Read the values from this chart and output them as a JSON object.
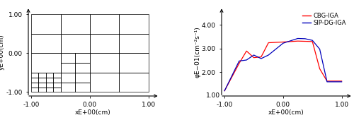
{
  "left_xlim": [
    -1.05,
    1.15
  ],
  "left_ylim": [
    -1.1,
    1.15
  ],
  "left_xlabel": "xE+00(cm)",
  "left_ylabel": "yE+00(cm)",
  "left_xticks": [
    -1.0,
    0.0,
    1.0
  ],
  "left_yticks": [
    -1.0,
    0.0,
    1.0
  ],
  "right_xlim": [
    -1.05,
    1.15
  ],
  "right_ylim": [
    1.0,
    4.7
  ],
  "right_xlabel": "xE+00(cm)",
  "right_ylabel": "φE−01(cm⁻²s⁻¹)",
  "right_yticks": [
    2.0,
    3.0,
    4.0
  ],
  "right_xticks": [
    -1.0,
    0.0,
    1.0
  ],
  "cbg_color": "#ff0000",
  "dg_color": "#0000bb",
  "cbg_label": "CBG-IGA",
  "dg_label": "SIP-DG-IGA",
  "cbg_x": [
    -1.0,
    -0.75,
    -0.625,
    -0.5,
    -0.375,
    -0.25,
    0.0,
    0.25,
    0.5,
    0.625,
    0.75,
    1.0
  ],
  "cbg_y": [
    1.22,
    2.38,
    2.9,
    2.62,
    2.65,
    3.25,
    3.28,
    3.32,
    3.3,
    2.15,
    1.63,
    1.63
  ],
  "dg_x": [
    -1.0,
    -0.75,
    -0.625,
    -0.5,
    -0.375,
    -0.25,
    0.0,
    0.25,
    0.375,
    0.5,
    0.625,
    0.75,
    1.0
  ],
  "dg_y": [
    1.22,
    2.48,
    2.52,
    2.73,
    2.58,
    2.73,
    3.23,
    3.43,
    3.42,
    3.35,
    2.98,
    1.6,
    1.6
  ],
  "tick_fontsize": 6.5,
  "label_fontsize": 6.5,
  "legend_fontsize": 6.0,
  "small_cell": 0.125,
  "medium_cell": 0.25,
  "large_cell": 0.5,
  "grid_rects": [
    [
      [
        -1.0,
        -1.0
      ],
      0.125,
      0.125
    ],
    [
      [
        -0.875,
        -1.0
      ],
      0.125,
      0.125
    ],
    [
      [
        -0.75,
        -1.0
      ],
      0.125,
      0.125
    ],
    [
      [
        -0.625,
        -1.0
      ],
      0.125,
      0.125
    ],
    [
      [
        -1.0,
        -0.875
      ],
      0.125,
      0.125
    ],
    [
      [
        -0.875,
        -0.875
      ],
      0.125,
      0.125
    ],
    [
      [
        -0.75,
        -0.875
      ],
      0.125,
      0.125
    ],
    [
      [
        -0.625,
        -0.875
      ],
      0.125,
      0.125
    ],
    [
      [
        -1.0,
        -0.75
      ],
      0.125,
      0.125
    ],
    [
      [
        -0.875,
        -0.75
      ],
      0.125,
      0.125
    ],
    [
      [
        -0.75,
        -0.75
      ],
      0.125,
      0.125
    ],
    [
      [
        -0.625,
        -0.75
      ],
      0.125,
      0.125
    ],
    [
      [
        -1.0,
        -0.625
      ],
      0.125,
      0.125
    ],
    [
      [
        -0.875,
        -0.625
      ],
      0.125,
      0.125
    ],
    [
      [
        -0.75,
        -0.625
      ],
      0.125,
      0.125
    ],
    [
      [
        -0.625,
        -0.625
      ],
      0.125,
      0.125
    ],
    [
      [
        -0.5,
        -1.0
      ],
      0.25,
      0.25
    ],
    [
      [
        -0.25,
        -1.0
      ],
      0.25,
      0.25
    ],
    [
      [
        -0.5,
        -0.75
      ],
      0.25,
      0.25
    ],
    [
      [
        -0.25,
        -0.75
      ],
      0.25,
      0.25
    ],
    [
      [
        -0.5,
        -0.5
      ],
      0.25,
      0.25
    ],
    [
      [
        -0.25,
        -0.5
      ],
      0.25,
      0.25
    ],
    [
      [
        -0.5,
        -0.25
      ],
      0.25,
      0.25
    ],
    [
      [
        -0.25,
        -0.25
      ],
      0.25,
      0.25
    ],
    [
      [
        -1.0,
        -0.5
      ],
      0.5,
      0.5
    ],
    [
      [
        0.0,
        -1.0
      ],
      0.5,
      0.5
    ],
    [
      [
        0.5,
        -1.0
      ],
      0.5,
      0.5
    ],
    [
      [
        0.0,
        -0.5
      ],
      0.5,
      0.5
    ],
    [
      [
        0.5,
        -0.5
      ],
      0.5,
      0.5
    ],
    [
      [
        -1.0,
        0.0
      ],
      0.5,
      0.5
    ],
    [
      [
        -0.5,
        0.0
      ],
      0.5,
      0.5
    ],
    [
      [
        0.0,
        0.0
      ],
      0.5,
      0.5
    ],
    [
      [
        0.5,
        0.0
      ],
      0.5,
      0.5
    ],
    [
      [
        -1.0,
        0.5
      ],
      0.5,
      0.5
    ],
    [
      [
        -0.5,
        0.5
      ],
      0.5,
      0.5
    ],
    [
      [
        0.0,
        0.5
      ],
      0.5,
      0.5
    ],
    [
      [
        0.5,
        0.5
      ],
      0.5,
      0.5
    ]
  ]
}
